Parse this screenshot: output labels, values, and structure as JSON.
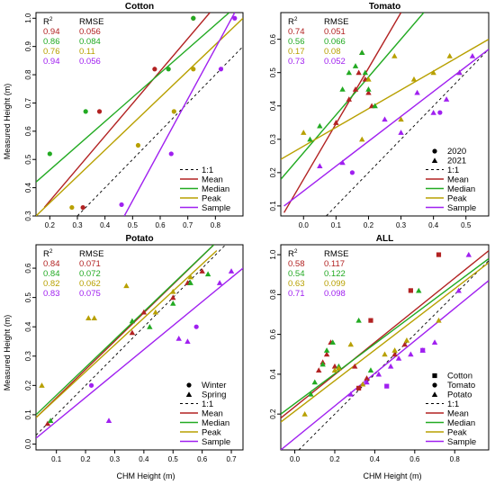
{
  "y_axis_label": "Measured Height (m)",
  "x_axis_label": "CHM Height (m)",
  "stats_headers": {
    "r2": "R",
    "r2_sup": "2",
    "rmse": "RMSE"
  },
  "colors": {
    "Mean": "#b22222",
    "Median": "#22aa22",
    "Peak": "#b8a000",
    "Sample": "#a020f0",
    "one_to_one": "#000000"
  },
  "chart_data": [
    {
      "type": "scatter",
      "title": "Cotton",
      "xlim": [
        0.15,
        0.9
      ],
      "ylim": [
        0.3,
        1.02
      ],
      "x_ticks": [
        0.2,
        0.3,
        0.4,
        0.5,
        0.6,
        0.7,
        0.8
      ],
      "y_ticks": [
        0.3,
        0.4,
        0.5,
        0.6,
        0.7,
        0.8,
        0.9,
        1.0
      ],
      "stats_position": "top-left",
      "legend_position": "bottom-right",
      "stats": [
        {
          "series": "Mean",
          "r2": "0.94",
          "rmse": "0.056"
        },
        {
          "series": "Median",
          "r2": "0.86",
          "rmse": "0.084"
        },
        {
          "series": "Peak",
          "r2": "0.76",
          "rmse": "0.11"
        },
        {
          "series": "Sample",
          "r2": "0.94",
          "rmse": "0.056"
        }
      ],
      "shape_legend": [],
      "line_legend": [
        "1:1",
        "Mean",
        "Median",
        "Peak",
        "Sample"
      ],
      "fit_lines": [
        {
          "series": "Mean",
          "x": [
            0.18,
            0.78
          ],
          "y": [
            0.33,
            1.02
          ]
        },
        {
          "series": "Median",
          "x": [
            0.15,
            0.85
          ],
          "y": [
            0.42,
            1.02
          ]
        },
        {
          "series": "Peak",
          "x": [
            0.15,
            0.9
          ],
          "y": [
            0.3,
            1.0
          ]
        },
        {
          "series": "Sample",
          "x": [
            0.47,
            0.87
          ],
          "y": [
            0.3,
            1.02
          ]
        }
      ],
      "points": [
        {
          "series": "Mean",
          "shape": "circle",
          "x": [
            0.32,
            0.38,
            0.58,
            0.72
          ],
          "y": [
            0.33,
            0.67,
            0.82,
            1.0
          ]
        },
        {
          "series": "Median",
          "shape": "circle",
          "x": [
            0.2,
            0.33,
            0.63,
            0.72
          ],
          "y": [
            0.52,
            0.67,
            0.82,
            1.0
          ]
        },
        {
          "series": "Peak",
          "shape": "circle",
          "x": [
            0.28,
            0.52,
            0.65,
            0.72
          ],
          "y": [
            0.33,
            0.55,
            0.67,
            0.82
          ]
        },
        {
          "series": "Sample",
          "shape": "circle",
          "x": [
            0.46,
            0.64,
            0.82,
            0.87
          ],
          "y": [
            0.34,
            0.52,
            0.82,
            1.0
          ]
        }
      ]
    },
    {
      "type": "scatter",
      "title": "Tomato",
      "xlim": [
        -0.07,
        0.57
      ],
      "ylim": [
        0.07,
        0.68
      ],
      "x_ticks": [
        0.0,
        0.1,
        0.2,
        0.3,
        0.4,
        0.5
      ],
      "y_ticks": [
        0.1,
        0.2,
        0.3,
        0.4,
        0.5,
        0.6
      ],
      "stats_position": "top-left",
      "legend_position": "bottom-right",
      "stats": [
        {
          "series": "Mean",
          "r2": "0.74",
          "rmse": "0.051"
        },
        {
          "series": "Median",
          "r2": "0.56",
          "rmse": "0.066"
        },
        {
          "series": "Peak",
          "r2": "0.17",
          "rmse": "0.08"
        },
        {
          "series": "Sample",
          "r2": "0.73",
          "rmse": "0.052"
        }
      ],
      "shape_legend": [
        {
          "label": "2020",
          "shape": "circle"
        },
        {
          "label": "2021",
          "shape": "triangle"
        }
      ],
      "line_legend": [
        "1:1",
        "Mean",
        "Median",
        "Peak",
        "Sample"
      ],
      "fit_lines": [
        {
          "series": "Mean",
          "x": [
            -0.06,
            0.3
          ],
          "y": [
            0.08,
            0.68
          ]
        },
        {
          "series": "Median",
          "x": [
            -0.07,
            0.37
          ],
          "y": [
            0.18,
            0.68
          ]
        },
        {
          "series": "Peak",
          "x": [
            -0.07,
            0.57
          ],
          "y": [
            0.24,
            0.6
          ]
        },
        {
          "series": "Sample",
          "x": [
            -0.06,
            0.57
          ],
          "y": [
            0.1,
            0.57
          ]
        }
      ],
      "points": [
        {
          "series": "Mean",
          "shape": "triangle",
          "x": [
            0.1,
            0.14,
            0.16,
            0.17,
            0.18,
            0.19,
            0.2,
            0.21
          ],
          "y": [
            0.35,
            0.42,
            0.45,
            0.5,
            0.56,
            0.48,
            0.44,
            0.4
          ]
        },
        {
          "series": "Median",
          "shape": "triangle",
          "x": [
            0.02,
            0.05,
            0.12,
            0.14,
            0.16,
            0.18,
            0.19,
            0.2,
            0.22
          ],
          "y": [
            0.3,
            0.34,
            0.45,
            0.5,
            0.52,
            0.56,
            0.5,
            0.45,
            0.4
          ]
        },
        {
          "series": "Peak",
          "shape": "triangle",
          "x": [
            0.0,
            0.18,
            0.2,
            0.28,
            0.3,
            0.34,
            0.4,
            0.45,
            0.48
          ],
          "y": [
            0.32,
            0.3,
            0.48,
            0.55,
            0.36,
            0.48,
            0.5,
            0.55,
            0.5
          ]
        },
        {
          "series": "Sample",
          "shape": "triangle",
          "x": [
            0.05,
            0.12,
            0.25,
            0.3,
            0.35,
            0.4,
            0.44,
            0.48,
            0.52
          ],
          "y": [
            0.22,
            0.23,
            0.36,
            0.32,
            0.44,
            0.38,
            0.42,
            0.5,
            0.55
          ]
        },
        {
          "series": "Sample",
          "shape": "circle",
          "x": [
            0.15,
            0.42
          ],
          "y": [
            0.2,
            0.38
          ]
        }
      ]
    },
    {
      "type": "scatter",
      "title": "Potato",
      "xlim": [
        0.03,
        0.74
      ],
      "ylim": [
        -0.02,
        0.68
      ],
      "x_ticks": [
        0.1,
        0.2,
        0.3,
        0.4,
        0.5,
        0.6,
        0.7
      ],
      "y_ticks": [
        0.0,
        0.1,
        0.2,
        0.3,
        0.4,
        0.5,
        0.6
      ],
      "stats_position": "top-left",
      "legend_position": "bottom-right",
      "stats": [
        {
          "series": "Mean",
          "r2": "0.84",
          "rmse": "0.071"
        },
        {
          "series": "Median",
          "r2": "0.84",
          "rmse": "0.072"
        },
        {
          "series": "Peak",
          "r2": "0.82",
          "rmse": "0.062"
        },
        {
          "series": "Sample",
          "r2": "0.83",
          "rmse": "0.075"
        }
      ],
      "shape_legend": [
        {
          "label": "Winter",
          "shape": "circle"
        },
        {
          "label": "Spring",
          "shape": "triangle"
        }
      ],
      "line_legend": [
        "1:1",
        "Mean",
        "Median",
        "Peak",
        "Sample"
      ],
      "fit_lines": [
        {
          "series": "Mean",
          "x": [
            0.03,
            0.64
          ],
          "y": [
            0.09,
            0.68
          ]
        },
        {
          "series": "Median",
          "x": [
            0.03,
            0.64
          ],
          "y": [
            0.1,
            0.68
          ]
        },
        {
          "series": "Peak",
          "x": [
            0.03,
            0.65
          ],
          "y": [
            0.09,
            0.66
          ]
        },
        {
          "series": "Sample",
          "x": [
            0.03,
            0.74
          ],
          "y": [
            0.02,
            0.6
          ]
        }
      ],
      "points": [
        {
          "series": "Mean",
          "shape": "triangle",
          "x": [
            0.07,
            0.36,
            0.4,
            0.5,
            0.55,
            0.6
          ],
          "y": [
            0.07,
            0.38,
            0.45,
            0.5,
            0.55,
            0.59
          ]
        },
        {
          "series": "Median",
          "shape": "triangle",
          "x": [
            0.08,
            0.36,
            0.42,
            0.5,
            0.56,
            0.62
          ],
          "y": [
            0.08,
            0.42,
            0.4,
            0.48,
            0.55,
            0.58
          ]
        },
        {
          "series": "Peak",
          "shape": "triangle",
          "x": [
            0.05,
            0.21,
            0.23,
            0.34,
            0.44,
            0.5,
            0.56
          ],
          "y": [
            0.2,
            0.43,
            0.43,
            0.54,
            0.45,
            0.52,
            0.57
          ]
        },
        {
          "series": "Sample",
          "shape": "triangle",
          "x": [
            0.28,
            0.52,
            0.55,
            0.66,
            0.7
          ],
          "y": [
            0.08,
            0.36,
            0.35,
            0.55,
            0.59
          ]
        },
        {
          "series": "Sample",
          "shape": "circle",
          "x": [
            0.22,
            0.58
          ],
          "y": [
            0.2,
            0.4
          ]
        }
      ]
    },
    {
      "type": "scatter",
      "title": "ALL",
      "xlim": [
        -0.07,
        0.97
      ],
      "ylim": [
        0.02,
        1.05
      ],
      "x_ticks": [
        0.0,
        0.2,
        0.4,
        0.6,
        0.8
      ],
      "y_ticks": [
        0.2,
        0.4,
        0.6,
        0.8,
        1.0
      ],
      "stats_position": "top-left",
      "legend_position": "bottom-right",
      "stats": [
        {
          "series": "Mean",
          "r2": "0.58",
          "rmse": "0.117"
        },
        {
          "series": "Median",
          "r2": "0.54",
          "rmse": "0.122"
        },
        {
          "series": "Peak",
          "r2": "0.63",
          "rmse": "0.099"
        },
        {
          "series": "Sample",
          "r2": "0.71",
          "rmse": "0.098"
        }
      ],
      "shape_legend": [
        {
          "label": "Cotton",
          "shape": "square"
        },
        {
          "label": "Tomato",
          "shape": "circle"
        },
        {
          "label": "Potato",
          "shape": "triangle"
        }
      ],
      "line_legend": [
        "1:1",
        "Mean",
        "Median",
        "Peak",
        "Sample"
      ],
      "fit_lines": [
        {
          "series": "Mean",
          "x": [
            -0.07,
            0.97
          ],
          "y": [
            0.18,
            1.02
          ]
        },
        {
          "series": "Median",
          "x": [
            -0.07,
            0.97
          ],
          "y": [
            0.2,
            0.98
          ]
        },
        {
          "series": "Peak",
          "x": [
            -0.07,
            0.97
          ],
          "y": [
            0.16,
            0.96
          ]
        },
        {
          "series": "Sample",
          "x": [
            -0.07,
            0.97
          ],
          "y": [
            0.02,
            0.87
          ]
        }
      ],
      "points": [
        {
          "series": "Mean",
          "shape": "triangle",
          "x": [
            0.12,
            0.14,
            0.16,
            0.18,
            0.2,
            0.3,
            0.36,
            0.5,
            0.55
          ],
          "y": [
            0.42,
            0.46,
            0.5,
            0.56,
            0.44,
            0.44,
            0.38,
            0.5,
            0.55
          ]
        },
        {
          "series": "Median",
          "shape": "triangle",
          "x": [
            0.08,
            0.1,
            0.14,
            0.16,
            0.19,
            0.22,
            0.32,
            0.38,
            0.62
          ],
          "y": [
            0.3,
            0.36,
            0.45,
            0.52,
            0.56,
            0.44,
            0.67,
            0.42,
            0.82
          ]
        },
        {
          "series": "Peak",
          "shape": "triangle",
          "x": [
            0.05,
            0.2,
            0.22,
            0.28,
            0.34,
            0.45,
            0.5,
            0.56,
            0.72
          ],
          "y": [
            0.2,
            0.42,
            0.43,
            0.55,
            0.35,
            0.5,
            0.52,
            0.57,
            0.67
          ]
        },
        {
          "series": "Sample",
          "shape": "triangle",
          "x": [
            0.28,
            0.36,
            0.42,
            0.48,
            0.52,
            0.58,
            0.64,
            0.7,
            0.82,
            0.87
          ],
          "y": [
            0.3,
            0.36,
            0.4,
            0.44,
            0.48,
            0.5,
            0.52,
            0.56,
            0.82,
            1.0
          ]
        },
        {
          "series": "Mean",
          "shape": "square",
          "x": [
            0.32,
            0.38,
            0.58,
            0.72
          ],
          "y": [
            0.33,
            0.67,
            0.82,
            1.0
          ]
        },
        {
          "series": "Sample",
          "shape": "square",
          "x": [
            0.46,
            0.64
          ],
          "y": [
            0.34,
            0.52
          ]
        }
      ]
    }
  ]
}
